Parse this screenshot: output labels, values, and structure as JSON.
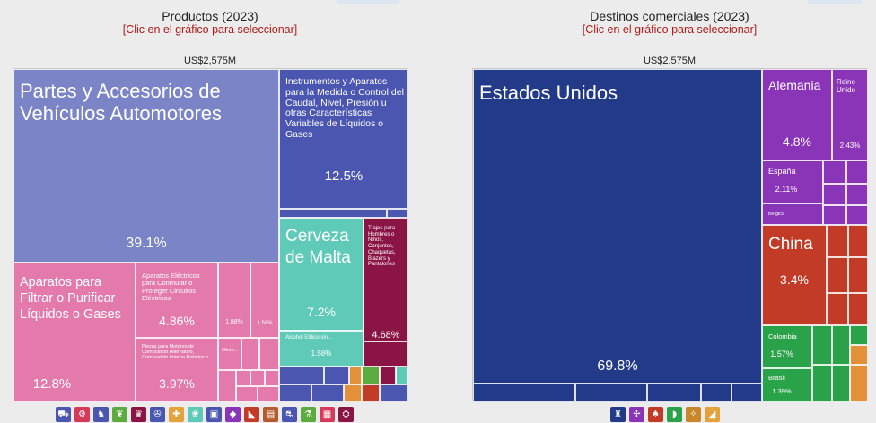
{
  "left": {
    "title": "Productos (2023)",
    "subtitle": "[Clic en el gráfico para seleccionar]",
    "total": "US$2,575M"
  },
  "right": {
    "title": "Destinos comerciales (2023)",
    "subtitle": "[Clic en el gráfico para seleccionar]",
    "total": "US$2,575M"
  },
  "chart_data": [
    {
      "type": "treemap",
      "title": "Productos (2023)",
      "subtitle": "[Clic en el gráfico para seleccionar]",
      "total": "US$2,575M",
      "items": [
        {
          "label": "Partes y Accesorios de Vehículos Automotores",
          "percent": "39.1%",
          "color": "#7b84c6"
        },
        {
          "label": "Instrumentos y Aparatos para la Medida o Control del Caudal, Nivel, Presión u otras Características Variables de Líquidos o Gases",
          "percent": "12.5%",
          "color": "#4a56b0"
        },
        {
          "label": "Cerveza de Malta",
          "percent": "7.2%",
          "color": "#5fcab7"
        },
        {
          "label": "Trajes para Hombres o Niños, Conjuntos, Chaquetas, Blazers y Pantalones",
          "percent": "4.68%",
          "color": "#8a1545"
        },
        {
          "label": "Aparatos para Filtrar o Purificar Líquidos o Gases",
          "percent": "12.8%",
          "color": "#e37aab"
        },
        {
          "label": "Aparatos Eléctricos para Conmutar o Proteger Circuitos Eléctricos",
          "percent": "4.86%",
          "color": "#e37aab"
        },
        {
          "label": "Piezas para Motores de Combustión Alternativo, Combustión Interna Rotativo o...",
          "percent": "3.97%",
          "color": "#e37aab"
        },
        {
          "label": "",
          "percent": "1.88%",
          "color": "#e37aab"
        },
        {
          "label": "",
          "percent": "1.58%",
          "color": "#e37aab"
        },
        {
          "label": "Otros...",
          "percent": "",
          "color": "#e37aab"
        },
        {
          "label": "Alcohol Etílico sin...",
          "percent": "1.58%",
          "color": "#5fcab7"
        }
      ]
    },
    {
      "type": "treemap",
      "title": "Destinos comerciales (2023)",
      "subtitle": "[Clic en el gráfico para seleccionar]",
      "total": "US$2,575M",
      "items": [
        {
          "label": "Estados Unidos",
          "percent": "69.8%",
          "color": "#223a88"
        },
        {
          "label": "Alemania",
          "percent": "4.8%",
          "color": "#8a35b8"
        },
        {
          "label": "Reino Unido",
          "percent": "2.43%",
          "color": "#8a35b8"
        },
        {
          "label": "España",
          "percent": "2.11%",
          "color": "#8a35b8"
        },
        {
          "label": "Bélgica",
          "percent": "",
          "color": "#8a35b8"
        },
        {
          "label": "China",
          "percent": "3.4%",
          "color": "#c23b26"
        },
        {
          "label": "Colombia",
          "percent": "1.57%",
          "color": "#2aa24a"
        },
        {
          "label": "Brasil",
          "percent": "1.39%",
          "color": "#2aa24a"
        }
      ]
    }
  ],
  "category_icons": [
    {
      "name": "truck-icon",
      "glyph": "⛟",
      "color": "#4a56b0"
    },
    {
      "name": "gear-icon",
      "glyph": "⚙",
      "color": "#d63a5a"
    },
    {
      "name": "animal-icon",
      "glyph": "♞",
      "color": "#4a56b0"
    },
    {
      "name": "plant-icon",
      "glyph": "❦",
      "color": "#5cab3e"
    },
    {
      "name": "clothing-icon",
      "glyph": "♛",
      "color": "#8a1545"
    },
    {
      "name": "machine-icon",
      "glyph": "✇",
      "color": "#4a56b0"
    },
    {
      "name": "chemical-icon",
      "glyph": "✚",
      "color": "#e3a23a"
    },
    {
      "name": "vegetable-icon",
      "glyph": "❀",
      "color": "#5fcab7"
    },
    {
      "name": "box-icon",
      "glyph": "▣",
      "color": "#4a56b0"
    },
    {
      "name": "gem-icon",
      "glyph": "◆",
      "color": "#8a35b8"
    },
    {
      "name": "shoe-icon",
      "glyph": "◣",
      "color": "#c23b26"
    },
    {
      "name": "paper-icon",
      "glyph": "▤",
      "color": "#b55c2f"
    },
    {
      "name": "vehicle-icon",
      "glyph": "⛐",
      "color": "#4a56b0"
    },
    {
      "name": "flask-icon",
      "glyph": "⚗",
      "color": "#5cab3e"
    },
    {
      "name": "glass-icon",
      "glyph": "▦",
      "color": "#d63a5a"
    },
    {
      "name": "train-icon",
      "glyph": "⛭",
      "color": "#8a1545"
    }
  ],
  "region_icons": [
    {
      "name": "north-america-icon",
      "glyph": "♜",
      "color": "#223a88"
    },
    {
      "name": "europe-icon",
      "glyph": "✢",
      "color": "#8a35b8"
    },
    {
      "name": "asia-icon",
      "glyph": "♠",
      "color": "#c23b26"
    },
    {
      "name": "south-america-icon",
      "glyph": "◗",
      "color": "#2aa24a"
    },
    {
      "name": "central-america-icon",
      "glyph": "✧",
      "color": "#c8872b"
    },
    {
      "name": "africa-icon",
      "glyph": "◢",
      "color": "#e3a23a"
    }
  ],
  "colors": {
    "title_red": "#b11a1a",
    "blue_dark": "#223a88",
    "blue_mid": "#4a56b0",
    "blue_light": "#7b84c6",
    "pink": "#e37aab",
    "teal": "#5fcab7",
    "maroon": "#8a1545",
    "purple": "#8a35b8",
    "red": "#c23b26",
    "green": "#2aa24a",
    "orange": "#e3903a"
  }
}
